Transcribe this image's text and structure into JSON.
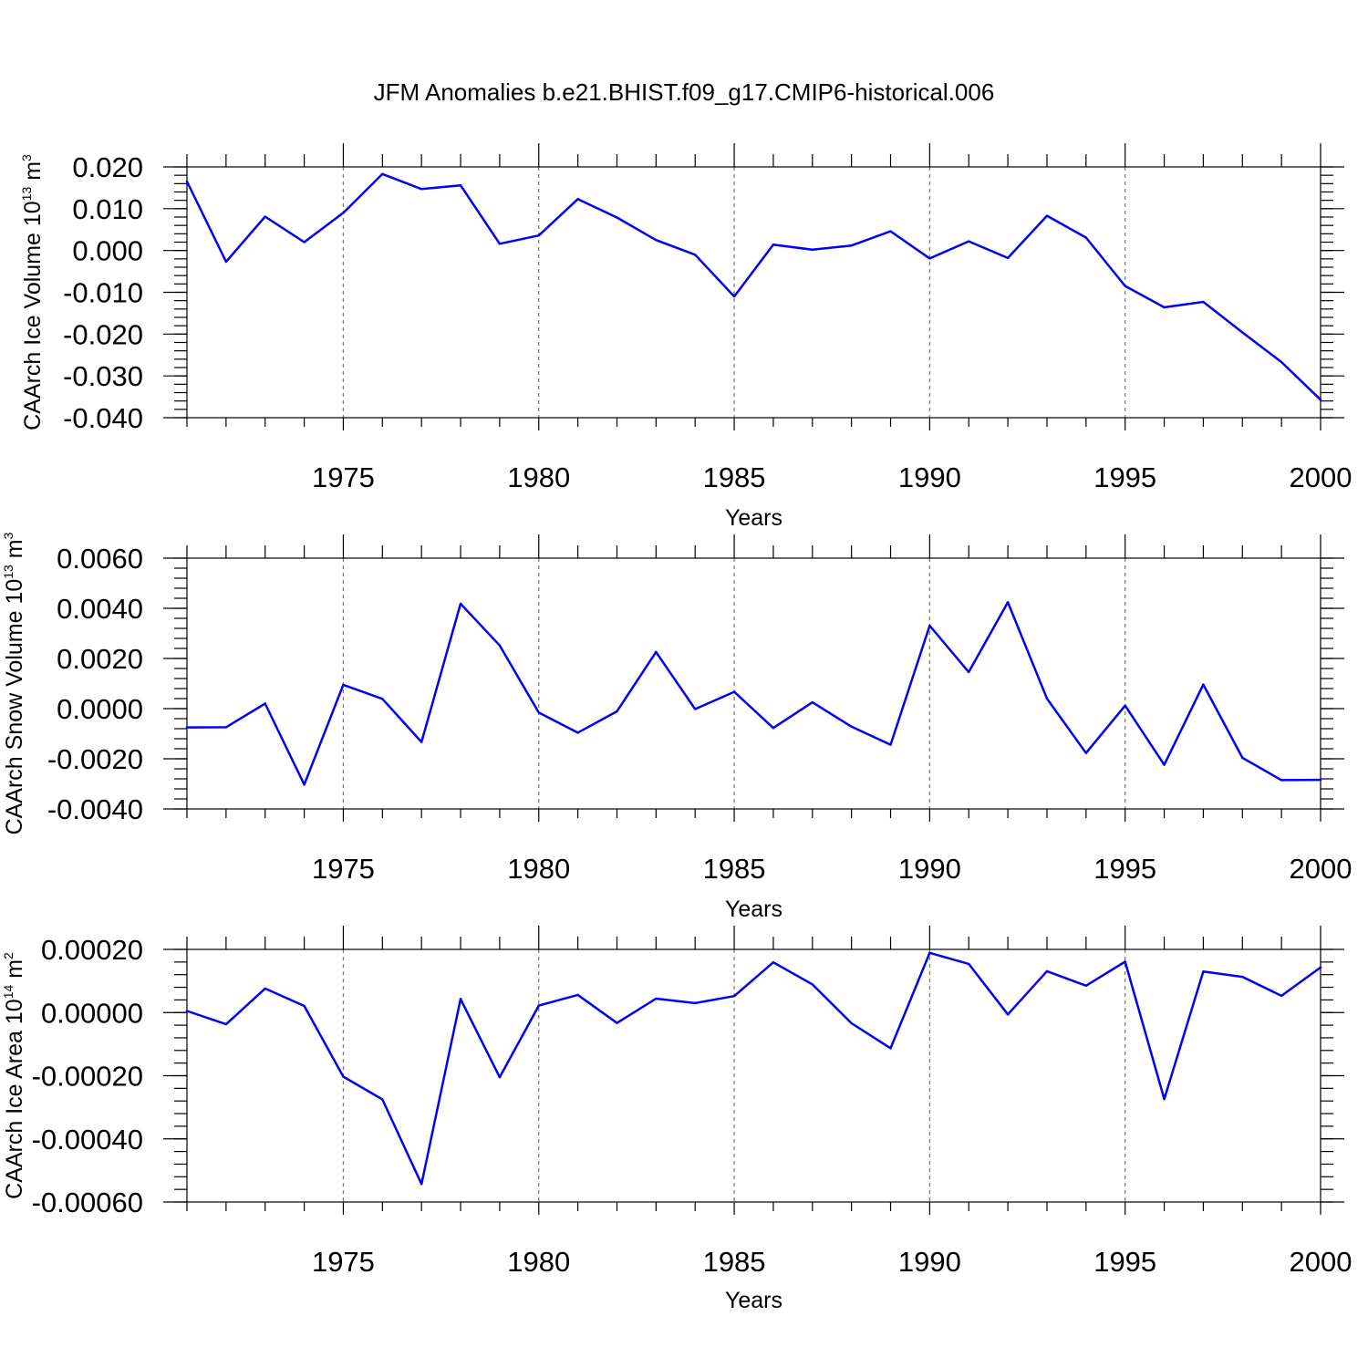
{
  "title": "JFM Anomalies b.e21.BHIST.f09_g17.CMIP6-historical.006",
  "colors": {
    "line": "#0000ff",
    "axis": "#000000",
    "grid": "#777777"
  },
  "chart_data": [
    {
      "type": "line",
      "title": "",
      "xlabel": "Years",
      "ylabel_main": "CAArch Ice Volume 10",
      "ylabel_exp1": "13",
      "ylabel_mid": " m",
      "ylabel_exp2": "3",
      "xlim": [
        1971,
        2000
      ],
      "ylim": [
        -0.04,
        0.02
      ],
      "x_ticks": [
        1975,
        1980,
        1985,
        1990,
        1995,
        2000
      ],
      "x_tick_labels": [
        "1975",
        "1980",
        "1985",
        "1990",
        "1995",
        "2000"
      ],
      "y_ticks": [
        0.02,
        0.01,
        0.0,
        -0.01,
        -0.02,
        -0.03,
        -0.04
      ],
      "y_tick_labels": [
        "0.020",
        "0.010",
        "0.000",
        "-0.010",
        "-0.020",
        "-0.030",
        "-0.040"
      ],
      "grid": "vertical dashed at major x ticks",
      "x": [
        1971,
        1972,
        1973,
        1974,
        1975,
        1976,
        1977,
        1978,
        1979,
        1980,
        1981,
        1982,
        1983,
        1984,
        1985,
        1986,
        1987,
        1988,
        1989,
        1990,
        1991,
        1992,
        1993,
        1994,
        1995,
        1996,
        1997,
        1998,
        1999,
        2000
      ],
      "values": [
        0.0165,
        -0.0027,
        0.0081,
        0.002,
        0.009,
        0.0183,
        0.0147,
        0.0156,
        0.0016,
        0.0036,
        0.0123,
        0.0079,
        0.0025,
        -0.001,
        -0.011,
        0.0014,
        0.0002,
        0.0012,
        0.0046,
        -0.0019,
        0.0022,
        -0.0018,
        0.0083,
        0.0031,
        -0.0085,
        -0.0136,
        -0.0123,
        -0.0196,
        -0.0267,
        -0.0357
      ]
    },
    {
      "type": "line",
      "title": "",
      "xlabel": "Years",
      "ylabel_main": "CAArch Snow Volume 10",
      "ylabel_exp1": "13",
      "ylabel_mid": " m",
      "ylabel_exp2": "3",
      "xlim": [
        1971,
        2000
      ],
      "ylim": [
        -0.004,
        0.006
      ],
      "x_ticks": [
        1975,
        1980,
        1985,
        1990,
        1995,
        2000
      ],
      "x_tick_labels": [
        "1975",
        "1980",
        "1985",
        "1990",
        "1995",
        "2000"
      ],
      "y_ticks": [
        0.006,
        0.004,
        0.002,
        0.0,
        -0.002,
        -0.004
      ],
      "y_tick_labels": [
        "0.0060",
        "0.0040",
        "0.0020",
        "0.0000",
        "-0.0020",
        "-0.0040"
      ],
      "grid": "vertical dashed at major x ticks",
      "x": [
        1971,
        1972,
        1973,
        1974,
        1975,
        1976,
        1977,
        1978,
        1979,
        1980,
        1981,
        1982,
        1983,
        1984,
        1985,
        1986,
        1987,
        1988,
        1989,
        1990,
        1991,
        1992,
        1993,
        1994,
        1995,
        1996,
        1997,
        1998,
        1999,
        2000
      ],
      "values": [
        -0.00075,
        -0.00074,
        0.0002,
        -0.00303,
        0.00095,
        0.00039,
        -0.00133,
        0.00418,
        0.00252,
        -0.00016,
        -0.00096,
        -0.00011,
        0.00226,
        -2e-05,
        0.00067,
        -0.00077,
        0.00025,
        -0.00072,
        -0.00144,
        0.00331,
        0.00146,
        0.00424,
        0.0004,
        -0.00177,
        0.00012,
        -0.00224,
        0.00096,
        -0.00196,
        -0.00285,
        -0.00284
      ]
    },
    {
      "type": "line",
      "title": "",
      "xlabel": "Years",
      "ylabel_main": "CAArch Ice Area 10",
      "ylabel_exp1": "14",
      "ylabel_mid": " m",
      "ylabel_exp2": "2",
      "xlim": [
        1971,
        2000
      ],
      "ylim": [
        -0.0006,
        0.0002
      ],
      "x_ticks": [
        1975,
        1980,
        1985,
        1990,
        1995,
        2000
      ],
      "x_tick_labels": [
        "1975",
        "1980",
        "1985",
        "1990",
        "1995",
        "2000"
      ],
      "y_ticks": [
        0.0002,
        0.0,
        -0.0002,
        -0.0004,
        -0.0006
      ],
      "y_tick_labels": [
        "0.00020",
        "0.00000",
        "-0.00020",
        "-0.00040",
        "-0.00060"
      ],
      "grid": "vertical dashed at major x ticks",
      "x": [
        1971,
        1972,
        1973,
        1974,
        1975,
        1976,
        1977,
        1978,
        1979,
        1980,
        1981,
        1982,
        1983,
        1984,
        1985,
        1986,
        1987,
        1988,
        1989,
        1990,
        1991,
        1992,
        1993,
        1994,
        1995,
        1996,
        1997,
        1998,
        1999,
        2000
      ],
      "values": [
        5e-06,
        -3.7e-05,
        7.6e-05,
        2.1e-05,
        -0.000203,
        -0.000275,
        -0.000543,
        4.3e-05,
        -0.000205,
        2.2e-05,
        5.6e-05,
        -3.3e-05,
        4.4e-05,
        3e-05,
        5.2e-05,
        0.000159,
        8.9e-05,
        -3.4e-05,
        -0.000113,
        0.000189,
        0.000154,
        -6e-06,
        0.000131,
        8.5e-05,
        0.000161,
        -0.000274,
        0.00013,
        0.000113,
        5.3e-05,
        0.000143
      ]
    }
  ]
}
